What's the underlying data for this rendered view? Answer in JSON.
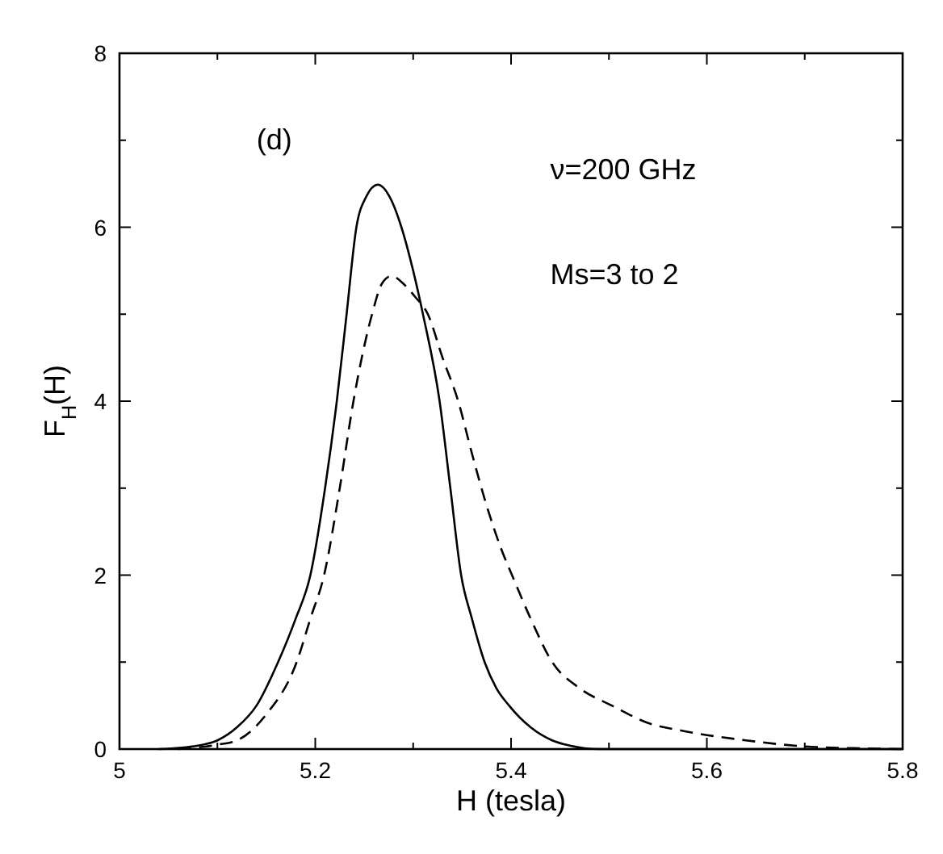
{
  "chart_data": {
    "type": "line",
    "xlabel": "H (tesla)",
    "ylabel": "F$_{H}$(H)",
    "annotations": [
      "(d)",
      "ν=200 GHz",
      "Ms=3 to 2"
    ],
    "xlim": [
      5,
      5.8
    ],
    "ylim": [
      0,
      8
    ],
    "xticks": [
      5,
      {
        "value": 5.1,
        "label": null
      },
      5.2,
      {
        "value": 5.3,
        "label": null
      },
      5.4,
      {
        "value": 5.5,
        "label": null
      },
      5.6,
      {
        "value": 5.7,
        "label": null
      },
      5.8
    ],
    "yticks": [
      0,
      {
        "value": 1,
        "label": null
      },
      2,
      {
        "value": 3,
        "label": null
      },
      4,
      {
        "value": 5,
        "label": null
      },
      6,
      {
        "value": 7,
        "label": null
      },
      8
    ],
    "grid": false,
    "series": [
      {
        "color": "#000000",
        "line_style": "solid",
        "x": [
          5.04,
          5.08,
          5.1,
          5.12,
          5.14,
          5.162,
          5.18,
          5.195,
          5.21,
          5.222,
          5.232,
          5.242,
          5.252,
          5.264,
          5.276,
          5.288,
          5.3,
          5.31,
          5.327,
          5.338,
          5.349,
          5.36,
          5.373,
          5.385,
          5.398,
          5.42,
          5.442,
          5.46,
          5.49,
          5.8
        ],
        "values": [
          0,
          0.04,
          0.1,
          0.25,
          0.5,
          1,
          1.5,
          2,
          3,
          4,
          5,
          6,
          6.35,
          6.49,
          6.35,
          6,
          5.5,
          5,
          4,
          3,
          2,
          1.5,
          1,
          0.7,
          0.5,
          0.25,
          0.1,
          0.04,
          0,
          0
        ]
      },
      {
        "color": "#000000",
        "line_style": "dashed",
        "x": [
          5.06,
          5.1,
          5.12,
          5.15,
          5.181,
          5.195,
          5.209,
          5.225,
          5.239,
          5.258,
          5.268,
          5.278,
          5.29,
          5.302,
          5.315,
          5.33,
          5.346,
          5.36,
          5.375,
          5.39,
          5.401,
          5.42,
          5.442,
          5.47,
          5.503,
          5.54,
          5.58,
          5.64,
          5.7,
          5.75,
          5.8
        ],
        "values": [
          0,
          0.05,
          0.1,
          0.4,
          1,
          1.5,
          2,
          3,
          4,
          5,
          5.35,
          5.44,
          5.35,
          5.2,
          5,
          4.5,
          4,
          3.4,
          2.8,
          2.3,
          2,
          1.5,
          1,
          0.7,
          0.5,
          0.3,
          0.2,
          0.1,
          0.03,
          0.01,
          0
        ]
      }
    ]
  }
}
